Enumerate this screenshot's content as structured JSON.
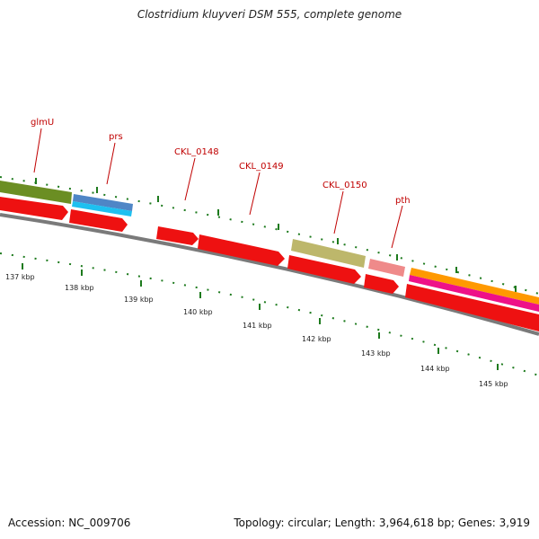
{
  "title": "Clostridium kluyveri DSM 555, complete genome",
  "footer": {
    "accession": "Accession: NC_009706",
    "summary": "Topology: circular; Length: 3,964,618 bp; Genes: 3,919"
  },
  "gene_labels": [
    "glmU",
    "prs",
    "CKL_0148",
    "CKL_0149",
    "CKL_0150",
    "pth"
  ],
  "kbp_labels": [
    "137 kbp",
    "138 kbp",
    "139 kbp",
    "140 kbp",
    "141 kbp",
    "142 kbp",
    "143 kbp",
    "144 kbp",
    "145 kbp"
  ],
  "colors": {
    "gene_label": "#c00000",
    "cds_red": "#ee1111",
    "backbone": "#777777",
    "tick_green": "#1d7a1d",
    "glmU_bar": "#6b8e23",
    "prs_bar_top": "#4f86c6",
    "prs_bar_bottom": "#1ec0f0",
    "ckl0150_bar": "#bdb76b",
    "pth_bar": "#ef8a8a",
    "orange_bar": "#ff9900",
    "magenta_bar": "#ee1188"
  }
}
